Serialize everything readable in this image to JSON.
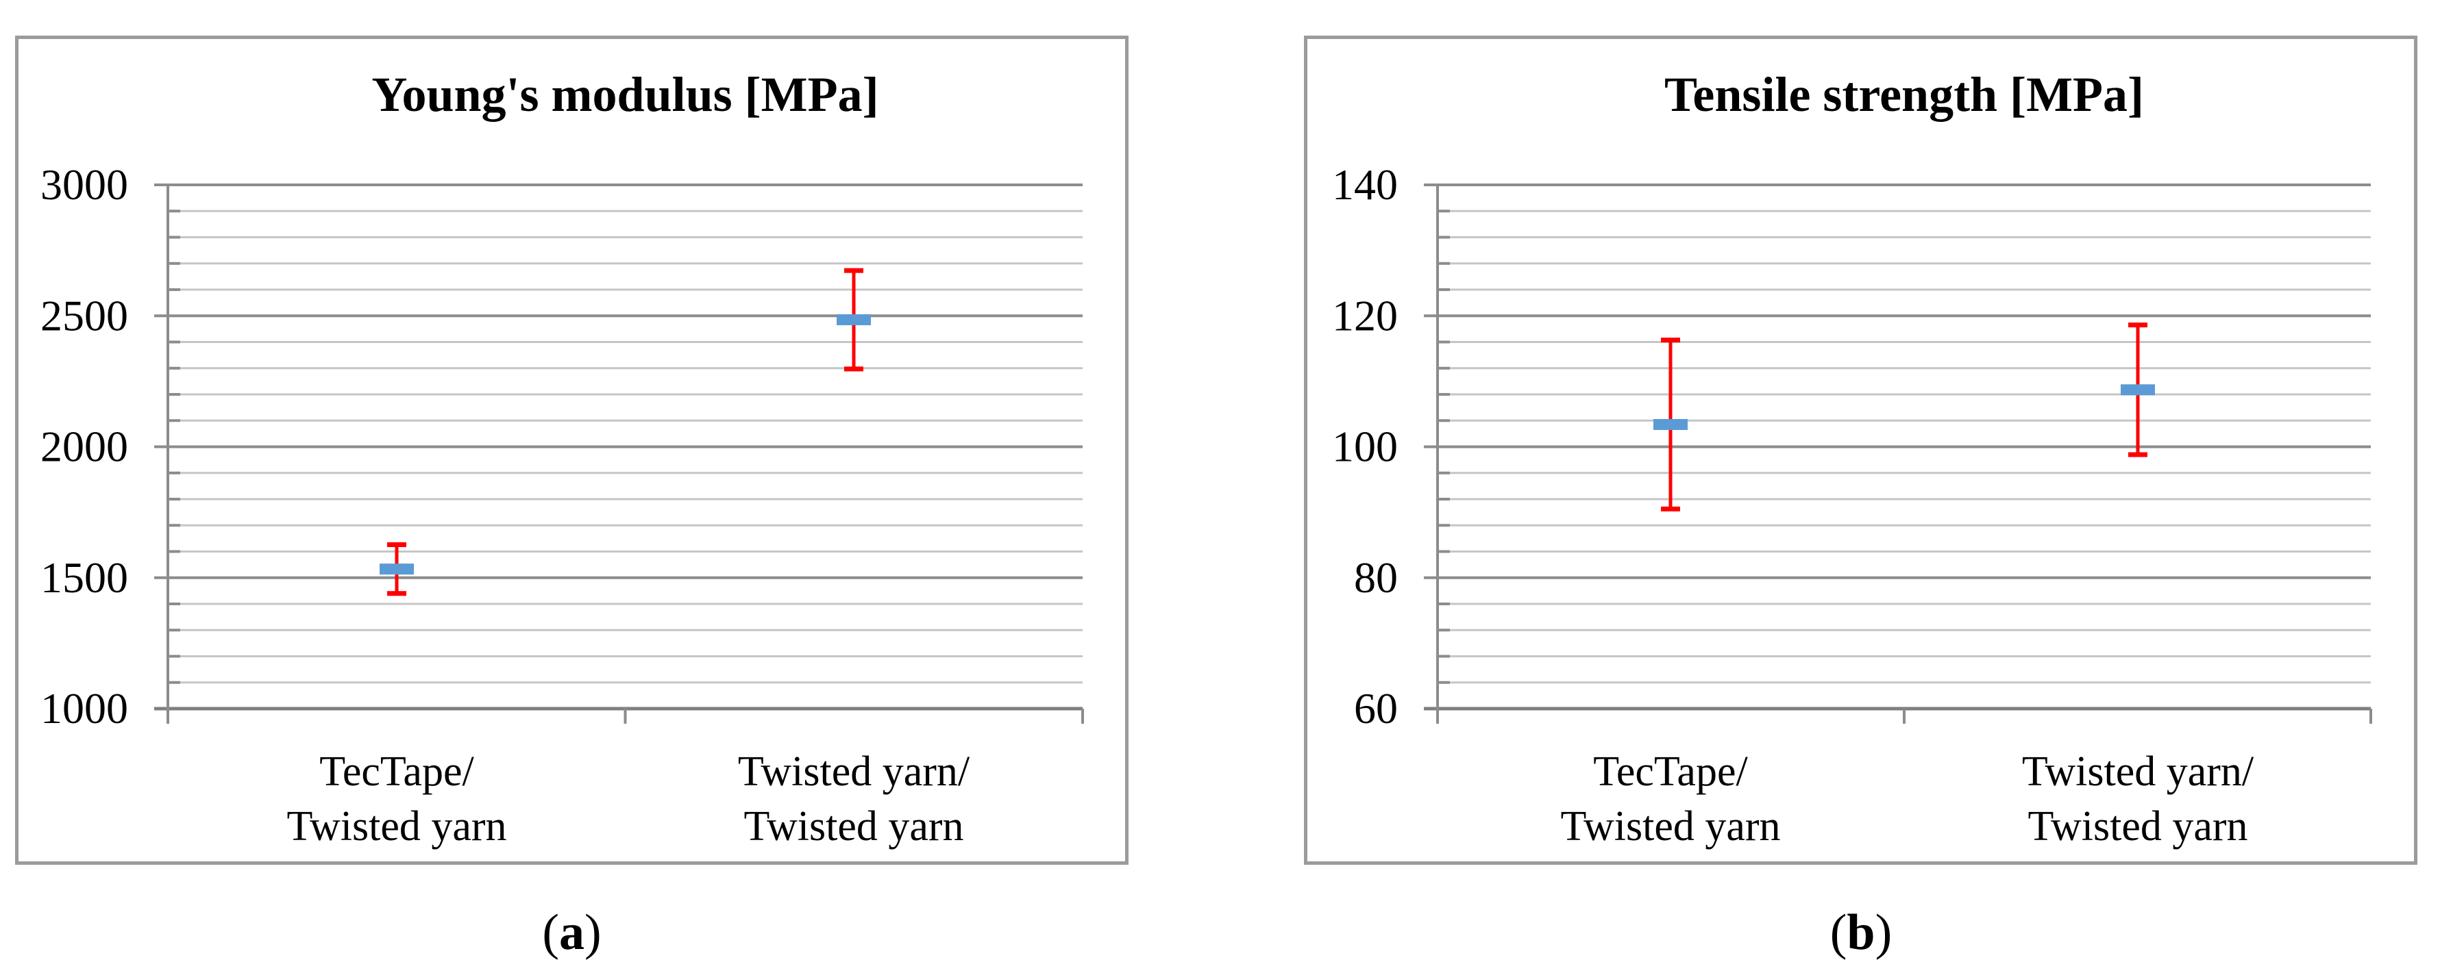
{
  "page": {
    "background": "#FFFFFF"
  },
  "colors": {
    "marker_blue": "#5B9BD5",
    "error_red": "#FF0000",
    "grid_major": "#8C8C8C",
    "grid_minor": "#C6C6C6",
    "axis_line": "#7F7F7F",
    "panel_border": "#9B9B9B",
    "text": "#000000"
  },
  "panels": [
    {
      "caption_open": "(",
      "caption_letter": "a",
      "caption_close": ")"
    },
    {
      "caption_open": "(",
      "caption_letter": "b",
      "caption_close": ")"
    }
  ],
  "chart_data": [
    {
      "type": "scatter",
      "title": "Young's modulus [MPa]",
      "categories": [
        [
          "TecTape/",
          "Twisted yarn"
        ],
        [
          "Twisted yarn/",
          "Twisted yarn"
        ]
      ],
      "series": [
        {
          "means": [
            1533,
            2485
          ],
          "errors": [
            93,
            188
          ]
        }
      ],
      "ylim": [
        1000,
        3000
      ],
      "ytick_major": 500,
      "ytick_minor": 100,
      "ytick_labels": [
        "1000",
        "1500",
        "2000",
        "2500",
        "3000"
      ],
      "xlabel": "",
      "ylabel": "",
      "grid": true,
      "legend_position": "none"
    },
    {
      "type": "scatter",
      "title": "Tensile strength [MPa]",
      "categories": [
        [
          "TecTape/",
          "Twisted yarn"
        ],
        [
          "Twisted yarn/",
          "Twisted yarn"
        ]
      ],
      "series": [
        {
          "means": [
            103.4,
            108.7
          ],
          "errors": [
            12.9,
            9.9
          ]
        }
      ],
      "ylim": [
        60,
        140
      ],
      "ytick_major": 20,
      "ytick_minor": 4,
      "ytick_labels": [
        "60",
        "80",
        "100",
        "120",
        "140"
      ],
      "xlabel": "",
      "ylabel": "",
      "grid": true,
      "legend_position": "none"
    }
  ]
}
